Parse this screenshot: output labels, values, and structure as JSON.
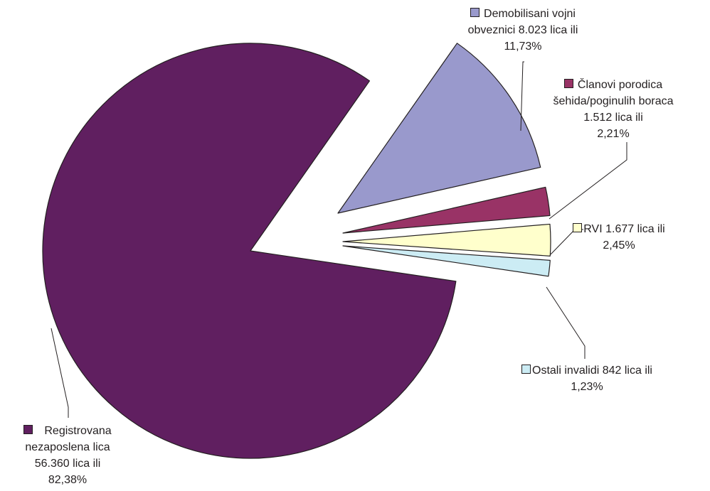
{
  "chart_data": {
    "type": "pie",
    "title": "",
    "exploded": true,
    "slices": [
      {
        "name": "Demobilisani vojni obveznici",
        "value": 8023,
        "percent": 11.73,
        "color": "#9999cc",
        "label_lines": [
          "Demobilisani vojni",
          "obveznici 8.023 lica ili",
          "11,73%"
        ]
      },
      {
        "name": "Članovi porodica šehida/poginulih boraca",
        "value": 1512,
        "percent": 2.21,
        "color": "#993366",
        "label_lines": [
          "Članovi porodica",
          "šehida/poginulih boraca",
          "1.512 lica ili",
          "2,21%"
        ]
      },
      {
        "name": "RVI",
        "value": 1677,
        "percent": 2.45,
        "color": "#ffffcc",
        "label_lines": [
          "RVI 1.677 lica ili",
          "2,45%"
        ]
      },
      {
        "name": "Ostali invalidi",
        "value": 842,
        "percent": 1.23,
        "color": "#ccecf4",
        "label_lines": [
          "Ostali invalidi 842 lica ili",
          "1,23%"
        ]
      },
      {
        "name": "Registrovana nezaposlena lica",
        "value": 56360,
        "percent": 82.38,
        "color": "#601f60",
        "label_lines": [
          "Registrovana",
          "nezaposlena lica",
          "56.360 lica ili",
          "82,38%"
        ]
      }
    ]
  }
}
